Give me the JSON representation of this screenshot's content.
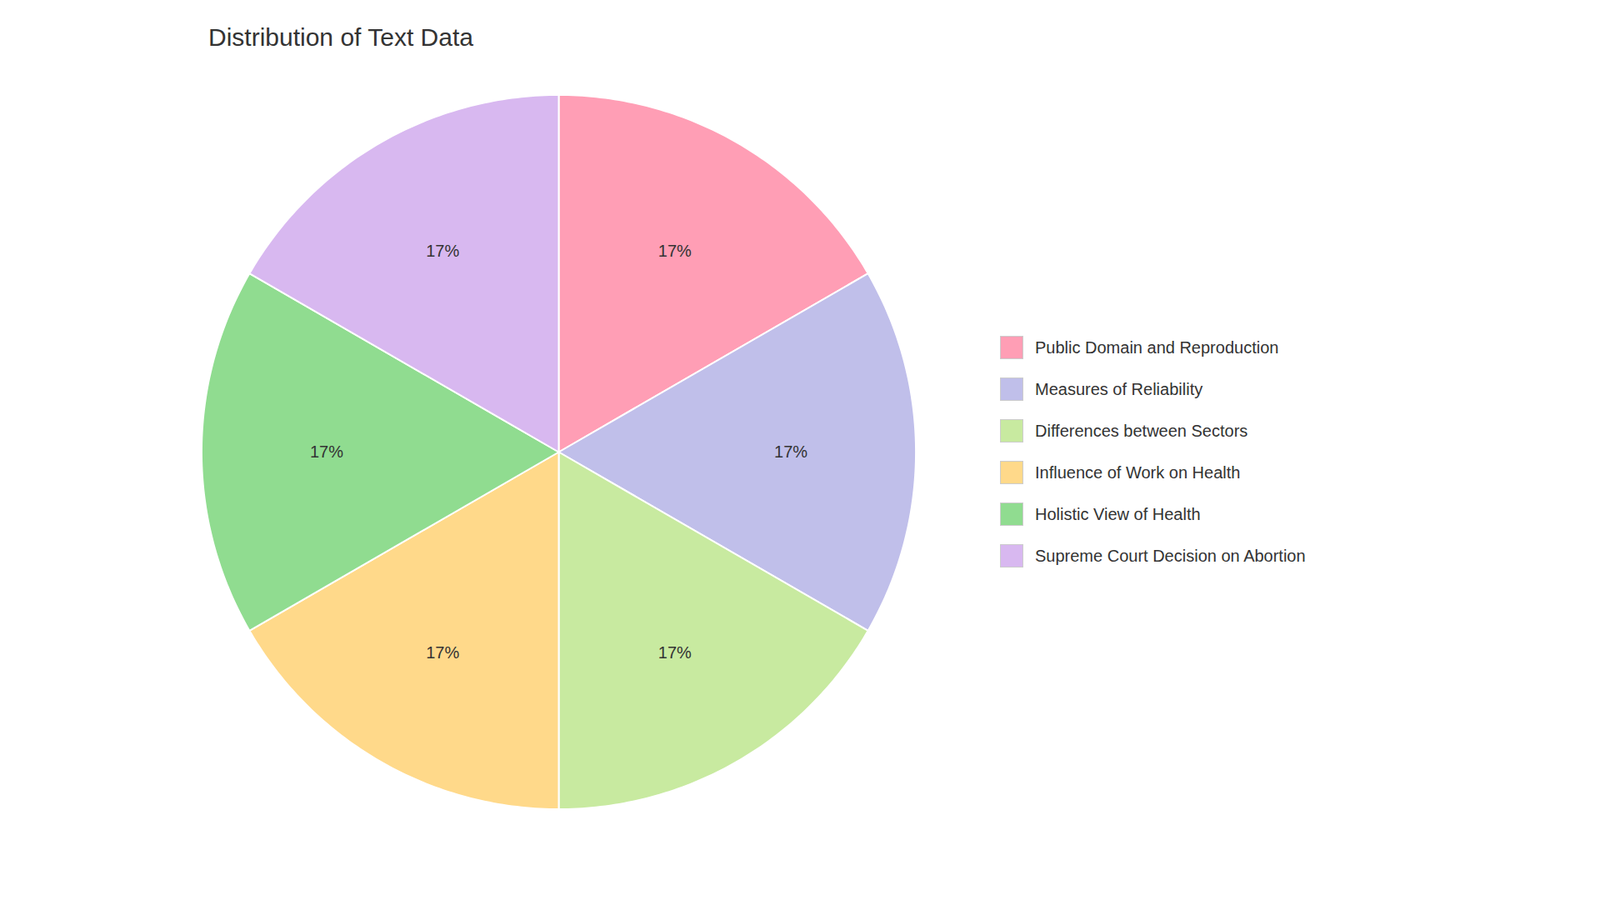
{
  "chart_data": {
    "type": "pie",
    "title": "Distribution of Text Data",
    "categories": [
      "Public Domain and Reproduction",
      "Measures of Reliability",
      "Differences between Sectors",
      "Influence of Work on Health",
      "Holistic View of Health",
      "Supreme Court Decision on Abortion"
    ],
    "values": [
      17,
      17,
      17,
      17,
      17,
      17
    ],
    "value_labels": [
      "17%",
      "17%",
      "17%",
      "17%",
      "17%",
      "17%"
    ],
    "colors": [
      "#FF9EB5",
      "#C0BFEA",
      "#C8EAA0",
      "#FFD98A",
      "#90DC90",
      "#D8B8F0"
    ],
    "data_labels": true,
    "legend": "right"
  }
}
